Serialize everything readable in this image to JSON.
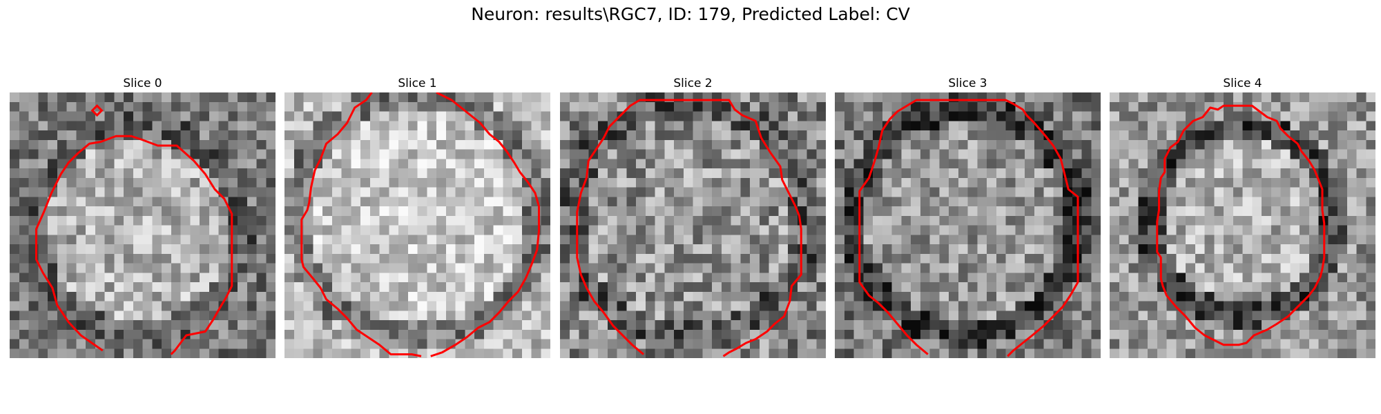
{
  "figure": {
    "title": "Neuron: results\\RGC7, ID: 179, Predicted Label: CV"
  },
  "panels": [
    {
      "title": "Slice 0"
    },
    {
      "title": "Slice 1"
    },
    {
      "title": "Slice 2"
    },
    {
      "title": "Slice 3"
    },
    {
      "title": "Slice 4"
    }
  ],
  "colors": {
    "contour": "#ff0000",
    "background": "#ffffff"
  }
}
